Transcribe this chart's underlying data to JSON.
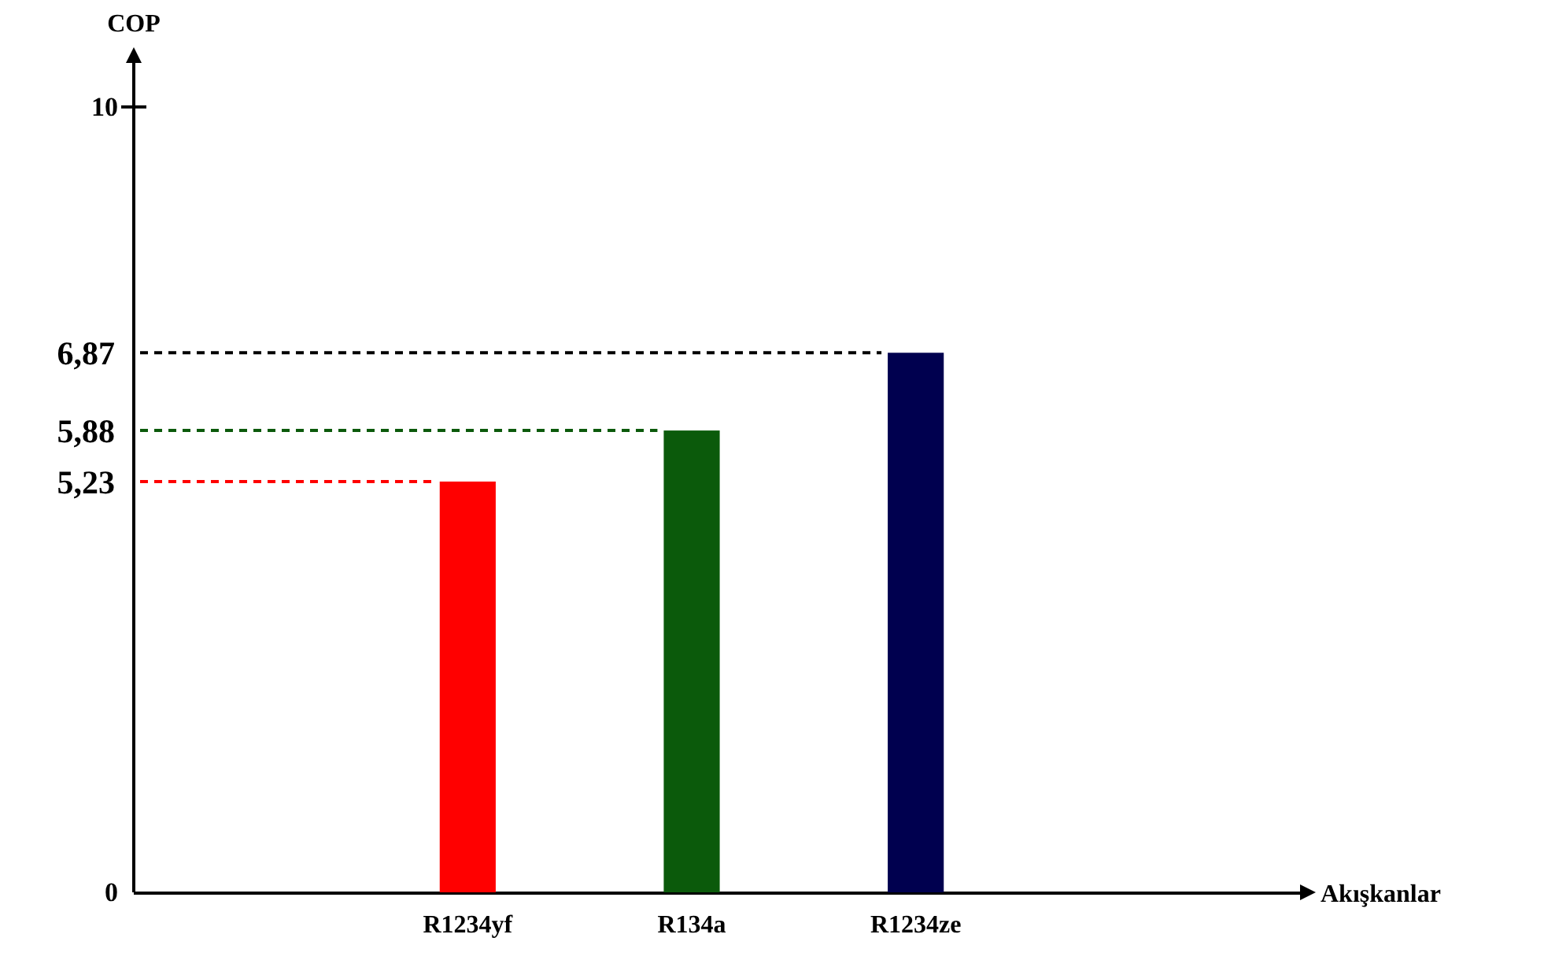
{
  "chart_data": {
    "type": "bar",
    "annotations": [
      "Akışkanlar"
    ],
    "ylabel": "COP",
    "categories": [
      "R1234yf",
      "R134a",
      "R1234ze"
    ],
    "values": [
      5.23,
      5.88,
      6.87
    ],
    "colors": [
      "#ff0000",
      "#0b5a0b",
      "#00004f"
    ],
    "ylim": [
      0,
      10.6
    ],
    "yticks": [
      0,
      10
    ],
    "ref_lines": [
      {
        "axis": "y",
        "value": 5.23,
        "label": "5,23",
        "color": "#ff0000",
        "line_style": "dashed"
      },
      {
        "axis": "y",
        "value": 5.88,
        "label": "5,88",
        "color": "#0b5a0b",
        "line_style": "dashed"
      },
      {
        "axis": "y",
        "value": 6.87,
        "label": "6,87",
        "color": "#000000",
        "line_style": "dashed"
      }
    ]
  }
}
